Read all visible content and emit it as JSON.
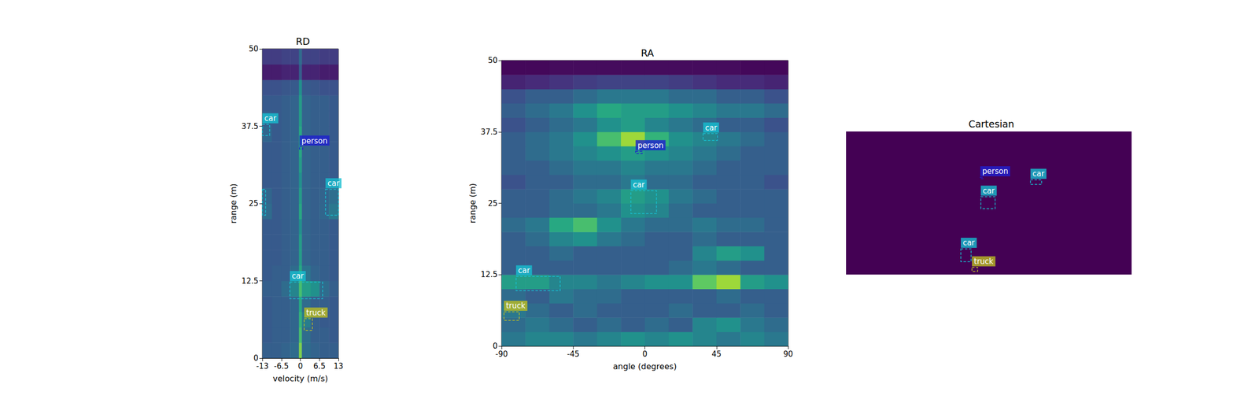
{
  "chart_data": [
    {
      "type": "heatmap",
      "title": "RD",
      "xlabel": "velocity (m/s)",
      "ylabel": "range (m)",
      "xlim": [
        -13,
        13
      ],
      "ylim": [
        0,
        50
      ],
      "xticks": [
        -13,
        -6.5,
        0,
        6.5,
        13
      ],
      "yticks": [
        0,
        12.5,
        25,
        37.5,
        50
      ],
      "value_range": [
        0,
        1
      ],
      "cells": {
        "x_edges": [
          -13,
          -9.75,
          -6.5,
          -3.5,
          -0.5,
          0.5,
          3.5,
          6.5,
          9.75,
          13
        ],
        "y_edges": [
          0,
          2.5,
          5,
          7.5,
          10,
          12.5,
          15,
          17.5,
          20,
          22.5,
          25,
          27.5,
          30,
          32.5,
          35,
          37.5,
          40,
          42.5,
          45,
          47.5,
          50
        ],
        "values": [
          [
            0.3,
            0.3,
            0.32,
            0.35,
            0.8,
            0.35,
            0.32,
            0.3,
            0.3
          ],
          [
            0.28,
            0.3,
            0.3,
            0.33,
            0.7,
            0.35,
            0.3,
            0.3,
            0.28
          ],
          [
            0.28,
            0.3,
            0.3,
            0.33,
            0.65,
            0.42,
            0.3,
            0.28,
            0.28
          ],
          [
            0.28,
            0.3,
            0.3,
            0.33,
            0.6,
            0.35,
            0.3,
            0.3,
            0.28
          ],
          [
            0.3,
            0.3,
            0.35,
            0.45,
            0.7,
            0.55,
            0.5,
            0.35,
            0.3
          ],
          [
            0.28,
            0.3,
            0.3,
            0.35,
            0.6,
            0.38,
            0.32,
            0.3,
            0.28
          ],
          [
            0.28,
            0.28,
            0.3,
            0.32,
            0.55,
            0.32,
            0.3,
            0.3,
            0.28
          ],
          [
            0.28,
            0.28,
            0.3,
            0.32,
            0.55,
            0.32,
            0.3,
            0.3,
            0.28
          ],
          [
            0.28,
            0.28,
            0.3,
            0.32,
            0.5,
            0.32,
            0.3,
            0.3,
            0.28
          ],
          [
            0.35,
            0.28,
            0.3,
            0.32,
            0.6,
            0.32,
            0.3,
            0.33,
            0.4
          ],
          [
            0.33,
            0.28,
            0.3,
            0.32,
            0.55,
            0.32,
            0.3,
            0.32,
            0.36
          ],
          [
            0.28,
            0.28,
            0.3,
            0.32,
            0.5,
            0.32,
            0.3,
            0.3,
            0.28
          ],
          [
            0.28,
            0.28,
            0.3,
            0.32,
            0.55,
            0.32,
            0.3,
            0.3,
            0.28
          ],
          [
            0.28,
            0.28,
            0.3,
            0.32,
            0.6,
            0.32,
            0.3,
            0.3,
            0.28
          ],
          [
            0.33,
            0.28,
            0.3,
            0.32,
            0.6,
            0.32,
            0.3,
            0.3,
            0.28
          ],
          [
            0.3,
            0.28,
            0.3,
            0.32,
            0.55,
            0.32,
            0.3,
            0.3,
            0.28
          ],
          [
            0.28,
            0.28,
            0.3,
            0.32,
            0.55,
            0.32,
            0.3,
            0.3,
            0.28
          ],
          [
            0.25,
            0.25,
            0.27,
            0.28,
            0.5,
            0.28,
            0.27,
            0.25,
            0.25
          ],
          [
            0.08,
            0.08,
            0.1,
            0.1,
            0.3,
            0.1,
            0.1,
            0.08,
            0.08
          ],
          [
            0.18,
            0.18,
            0.2,
            0.2,
            0.35,
            0.2,
            0.2,
            0.18,
            0.18
          ]
        ]
      },
      "boxes": [
        {
          "label": "car",
          "color": "#17becf",
          "x": [
            -13,
            -10.5
          ],
          "y": [
            36.0,
            37.8
          ]
        },
        {
          "label": "person",
          "color": "#1f1fd0",
          "x": [
            -0.3,
            0.8
          ],
          "y": [
            33.8,
            34.2
          ]
        },
        {
          "label": null,
          "color": "#17becf",
          "x": [
            -13,
            -11.9
          ],
          "y": [
            23.1,
            27.3
          ]
        },
        {
          "label": "car",
          "color": "#17becf",
          "x": [
            8.6,
            13
          ],
          "y": [
            23.1,
            27.3
          ]
        },
        {
          "label": "car",
          "color": "#17becf",
          "x": [
            -3.6,
            7.6
          ],
          "y": [
            9.6,
            12.3
          ]
        },
        {
          "label": "truck",
          "color": "#bcbd22",
          "x": [
            1.3,
            4.1
          ],
          "y": [
            4.5,
            6.4
          ]
        }
      ]
    },
    {
      "type": "heatmap",
      "title": "RA",
      "xlabel": "angle (degrees)",
      "ylabel": "range (m)",
      "xlim": [
        -90,
        90
      ],
      "ylim": [
        0,
        50
      ],
      "xticks": [
        -90,
        -45,
        0,
        45,
        90
      ],
      "yticks": [
        0,
        12.5,
        25,
        37.5,
        50
      ],
      "value_range": [
        0,
        1
      ],
      "cells": {
        "x_edges": [
          -90,
          -75,
          -60,
          -45,
          -30,
          -15,
          0,
          15,
          30,
          45,
          60,
          75,
          90
        ],
        "y_edges": [
          0,
          2.5,
          5,
          7.5,
          10,
          12.5,
          15,
          17.5,
          20,
          22.5,
          25,
          27.5,
          30,
          32.5,
          35,
          37.5,
          40,
          42.5,
          45,
          47.5,
          50
        ],
        "values": [
          [
            0.4,
            0.45,
            0.45,
            0.4,
            0.45,
            0.5,
            0.45,
            0.5,
            0.45,
            0.4,
            0.45,
            0.4
          ],
          [
            0.35,
            0.4,
            0.35,
            0.3,
            0.35,
            0.3,
            0.35,
            0.3,
            0.45,
            0.5,
            0.4,
            0.35
          ],
          [
            0.4,
            0.35,
            0.3,
            0.35,
            0.3,
            0.3,
            0.3,
            0.35,
            0.3,
            0.3,
            0.35,
            0.3
          ],
          [
            0.35,
            0.3,
            0.4,
            0.35,
            0.35,
            0.3,
            0.3,
            0.3,
            0.3,
            0.35,
            0.3,
            0.3
          ],
          [
            0.55,
            0.55,
            0.45,
            0.45,
            0.4,
            0.45,
            0.5,
            0.5,
            0.75,
            0.85,
            0.55,
            0.5
          ],
          [
            0.3,
            0.3,
            0.3,
            0.3,
            0.3,
            0.3,
            0.3,
            0.35,
            0.4,
            0.35,
            0.3,
            0.3
          ],
          [
            0.3,
            0.3,
            0.35,
            0.3,
            0.3,
            0.3,
            0.3,
            0.3,
            0.45,
            0.55,
            0.5,
            0.3
          ],
          [
            0.3,
            0.35,
            0.45,
            0.5,
            0.4,
            0.35,
            0.3,
            0.3,
            0.35,
            0.3,
            0.3,
            0.3
          ],
          [
            0.35,
            0.4,
            0.6,
            0.7,
            0.5,
            0.4,
            0.35,
            0.35,
            0.4,
            0.35,
            0.35,
            0.3
          ],
          [
            0.3,
            0.3,
            0.35,
            0.35,
            0.4,
            0.5,
            0.45,
            0.35,
            0.3,
            0.3,
            0.3,
            0.3
          ],
          [
            0.3,
            0.3,
            0.35,
            0.4,
            0.45,
            0.55,
            0.5,
            0.4,
            0.35,
            0.3,
            0.3,
            0.3
          ],
          [
            0.25,
            0.3,
            0.3,
            0.35,
            0.35,
            0.4,
            0.35,
            0.35,
            0.3,
            0.3,
            0.3,
            0.25
          ],
          [
            0.3,
            0.3,
            0.35,
            0.4,
            0.4,
            0.45,
            0.4,
            0.4,
            0.35,
            0.3,
            0.3,
            0.3
          ],
          [
            0.3,
            0.35,
            0.4,
            0.45,
            0.5,
            0.55,
            0.5,
            0.45,
            0.4,
            0.35,
            0.3,
            0.3
          ],
          [
            0.3,
            0.35,
            0.4,
            0.5,
            0.7,
            0.85,
            0.65,
            0.5,
            0.45,
            0.4,
            0.35,
            0.3
          ],
          [
            0.25,
            0.3,
            0.35,
            0.4,
            0.5,
            0.55,
            0.45,
            0.4,
            0.35,
            0.3,
            0.3,
            0.25
          ],
          [
            0.3,
            0.35,
            0.4,
            0.5,
            0.6,
            0.55,
            0.55,
            0.5,
            0.45,
            0.4,
            0.4,
            0.35
          ],
          [
            0.25,
            0.3,
            0.3,
            0.35,
            0.4,
            0.4,
            0.4,
            0.35,
            0.35,
            0.3,
            0.3,
            0.25
          ],
          [
            0.1,
            0.12,
            0.15,
            0.18,
            0.2,
            0.2,
            0.2,
            0.18,
            0.15,
            0.12,
            0.12,
            0.1
          ],
          [
            0.02,
            0.02,
            0.03,
            0.03,
            0.03,
            0.03,
            0.03,
            0.03,
            0.03,
            0.03,
            0.02,
            0.02
          ]
        ]
      },
      "boxes": [
        {
          "label": "car",
          "color": "#17becf",
          "x": [
            36.6,
            45.6
          ],
          "y": [
            36.0,
            37.2
          ]
        },
        {
          "label": "person",
          "color": "#1f1fd0",
          "x": [
            -5.8,
            -1.7
          ],
          "y": [
            33.7,
            34.1
          ]
        },
        {
          "label": "car",
          "color": "#17becf",
          "x": [
            -8.8,
            7.3
          ],
          "y": [
            23.2,
            27.2
          ]
        },
        {
          "label": "car",
          "color": "#17becf",
          "x": [
            -80.9,
            -53.2
          ],
          "y": [
            9.7,
            12.2
          ]
        },
        {
          "label": "truck",
          "color": "#bcbd22",
          "x": [
            -88.5,
            -78.9
          ],
          "y": [
            4.5,
            6.0
          ]
        }
      ]
    },
    {
      "type": "heatmap",
      "title": "Cartesian",
      "xlim": [
        -50,
        50
      ],
      "ylim": [
        0,
        50
      ],
      "tick_labels": false,
      "color": "#440154",
      "boxes": [
        {
          "label": "person",
          "color": "#1f1fd0",
          "x": [
            -3,
            -2
          ],
          "y": [
            33.5,
            34
          ]
        },
        {
          "label": "car",
          "color": "#17becf",
          "x": [
            14.6,
            18.5
          ],
          "y": [
            31.5,
            33.1
          ]
        },
        {
          "label": "car",
          "color": "#17becf",
          "x": [
            -2.8,
            2.2
          ],
          "y": [
            23.0,
            27.2
          ]
        },
        {
          "label": "car",
          "color": "#17becf",
          "x": [
            -9.8,
            -6.2
          ],
          "y": [
            4.5,
            9.0
          ]
        },
        {
          "label": "truck",
          "color": "#bcbd22",
          "x": [
            -5.9,
            -3.9
          ],
          "y": [
            1.1,
            2.5
          ]
        }
      ]
    }
  ]
}
